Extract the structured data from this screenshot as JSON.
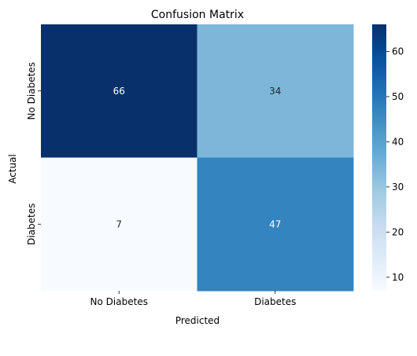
{
  "chart_data": {
    "type": "heatmap",
    "title": "Confusion Matrix",
    "xlabel": "Predicted",
    "ylabel": "Actual",
    "x_categories": [
      "No Diabetes",
      "Diabetes"
    ],
    "y_categories": [
      "No Diabetes",
      "Diabetes"
    ],
    "values": [
      [
        66,
        34
      ],
      [
        7,
        47
      ]
    ],
    "value_range": [
      7,
      66
    ],
    "colorbar": {
      "ticks": [
        10,
        20,
        30,
        40,
        50,
        60
      ],
      "tick_labels": [
        "10",
        "20",
        "30",
        "40",
        "50",
        "60"
      ]
    },
    "colormap": [
      "#f7fbff",
      "#deebf7",
      "#c6dbef",
      "#9ecae1",
      "#6baed6",
      "#4292c6",
      "#2171b5",
      "#08519c",
      "#08306b"
    ],
    "annotations": true
  }
}
